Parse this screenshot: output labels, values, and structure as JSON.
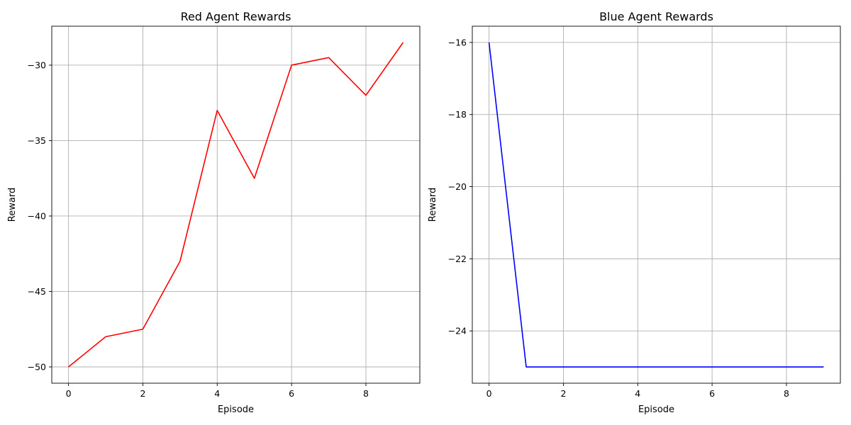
{
  "chart_data": [
    {
      "type": "line",
      "title": "Red Agent Rewards",
      "xlabel": "Episode",
      "ylabel": "Reward",
      "x": [
        0,
        1,
        2,
        3,
        4,
        5,
        6,
        7,
        8,
        9
      ],
      "series": [
        {
          "values": [
            -50,
            -48,
            -47.5,
            -43,
            -33,
            -37.5,
            -30,
            -29.5,
            -32,
            -28.5
          ],
          "color": "#ff0000"
        }
      ],
      "xlim": [
        -0.45,
        9.45
      ],
      "ylim": [
        -51.08,
        -27.42
      ],
      "xticks": [
        0,
        2,
        4,
        6,
        8
      ],
      "xtick_labels": [
        "0",
        "2",
        "4",
        "6",
        "8"
      ],
      "yticks": [
        -50,
        -45,
        -40,
        -35,
        -30
      ],
      "ytick_labels": [
        "−50",
        "−45",
        "−40",
        "−35",
        "−30"
      ],
      "grid": true
    },
    {
      "type": "line",
      "title": "Blue Agent Rewards",
      "xlabel": "Episode",
      "ylabel": "Reward",
      "x": [
        0,
        1,
        2,
        3,
        4,
        5,
        6,
        7,
        8,
        9
      ],
      "series": [
        {
          "values": [
            -16,
            -25,
            -25,
            -25,
            -25,
            -25,
            -25,
            -25,
            -25,
            -25
          ],
          "color": "#0000ff"
        }
      ],
      "xlim": [
        -0.45,
        9.45
      ],
      "ylim": [
        -25.45,
        -15.55
      ],
      "xticks": [
        0,
        2,
        4,
        6,
        8
      ],
      "xtick_labels": [
        "0",
        "2",
        "4",
        "6",
        "8"
      ],
      "yticks": [
        -24,
        -22,
        -20,
        -18,
        -16
      ],
      "ytick_labels": [
        "−24",
        "−22",
        "−20",
        "−18",
        "−16"
      ],
      "grid": true
    }
  ]
}
